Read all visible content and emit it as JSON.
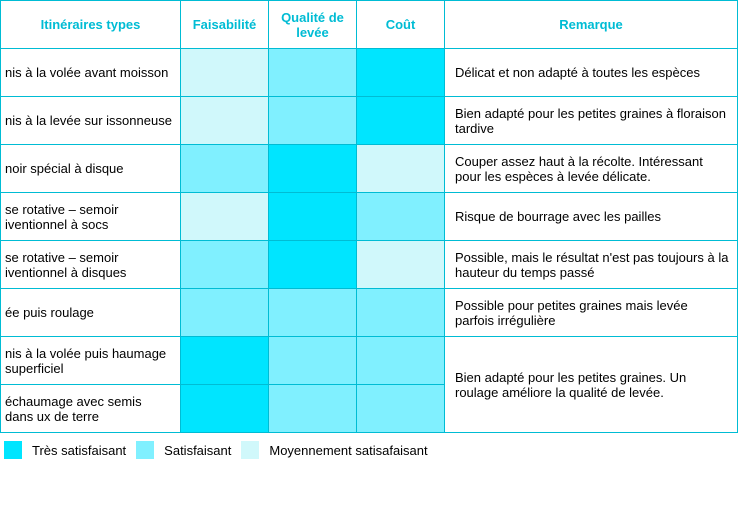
{
  "colors": {
    "border": "#00bcd4",
    "header_text": "#00bcd4",
    "level1": "#00e5ff",
    "level2": "#80f0ff",
    "level3": "#d0f8fb"
  },
  "headers": {
    "itin": "Itinéraires types",
    "feas": "Faisabilité",
    "qual": "Qualité de levée",
    "cost": "Coût",
    "remark": "Remarque"
  },
  "rows": [
    {
      "itin": "nis à la volée avant moisson",
      "feas": 3,
      "qual": 2,
      "cost": 1,
      "remark": "Délicat et non adapté à toutes les espèces",
      "rowspan": 1
    },
    {
      "itin": "nis à la levée sur issonneuse",
      "feas": 3,
      "qual": 2,
      "cost": 1,
      "remark": "Bien adapté pour les petites graines à floraison tardive",
      "rowspan": 1
    },
    {
      "itin": "noir spécial à disque",
      "feas": 2,
      "qual": 1,
      "cost": 3,
      "remark": "Couper assez haut à la récolte. Intéressant pour les espèces à levée délicate.",
      "rowspan": 1
    },
    {
      "itin": "se rotative – semoir iventionnel à socs",
      "feas": 3,
      "qual": 1,
      "cost": 2,
      "remark": "Risque de bourrage avec les pailles",
      "rowspan": 1
    },
    {
      "itin": "se rotative – semoir iventionnel à disques",
      "feas": 2,
      "qual": 1,
      "cost": 3,
      "remark": "Possible, mais le résultat n'est pas toujours à la hauteur du temps passé",
      "rowspan": 1
    },
    {
      "itin": "ée puis roulage",
      "feas": 2,
      "qual": 2,
      "cost": 2,
      "remark": "Possible pour petites graines mais levée parfois irrégulière",
      "rowspan": 1
    },
    {
      "itin": "nis à la volée puis haumage superficiel",
      "feas": 1,
      "qual": 2,
      "cost": 2,
      "remark": "Bien adapté pour les petites graines. Un roulage améliore la qualité de levée.",
      "rowspan": 2
    },
    {
      "itin": "échaumage avec semis dans ux de terre",
      "feas": 1,
      "qual": 2,
      "cost": 2,
      "remark": null,
      "rowspan": 0
    }
  ],
  "legend": {
    "l1": "Très satisfaisant",
    "l2": "Satisfaisant",
    "l3": "Moyennement satisafaisant"
  }
}
